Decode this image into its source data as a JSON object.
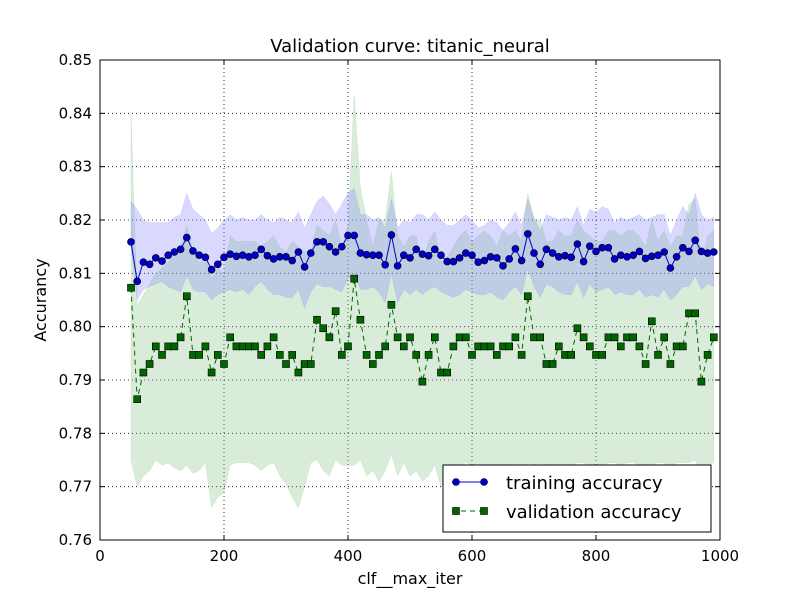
{
  "chart_data": {
    "type": "line",
    "title": "Validation curve: titanic_neural",
    "xlabel": "clf__max_iter",
    "ylabel": "Accurancy",
    "xlim": [
      0,
      1000
    ],
    "ylim": [
      0.76,
      0.85
    ],
    "x_ticks": [
      "0",
      "200",
      "400",
      "600",
      "800",
      "1000"
    ],
    "y_ticks": [
      "0.76",
      "0.77",
      "0.78",
      "0.79",
      "0.80",
      "0.81",
      "0.82",
      "0.83",
      "0.84",
      "0.85"
    ],
    "grid": true,
    "legend_position": "lower-right",
    "x": [
      50,
      60,
      70,
      80,
      90,
      100,
      110,
      120,
      130,
      140,
      150,
      160,
      170,
      180,
      190,
      200,
      210,
      220,
      230,
      240,
      250,
      260,
      270,
      280,
      290,
      300,
      310,
      320,
      330,
      340,
      350,
      360,
      370,
      380,
      390,
      400,
      410,
      420,
      430,
      440,
      450,
      460,
      470,
      480,
      490,
      500,
      510,
      520,
      530,
      540,
      550,
      560,
      570,
      580,
      590,
      600,
      610,
      620,
      630,
      640,
      650,
      660,
      670,
      680,
      690,
      700,
      710,
      720,
      730,
      740,
      750,
      760,
      770,
      780,
      790,
      800,
      810,
      820,
      830,
      840,
      850,
      860,
      870,
      880,
      890,
      900,
      910,
      920,
      930,
      940,
      950,
      960,
      970,
      980,
      990
    ],
    "series": [
      {
        "name": "training accuracy",
        "color": "#0000cc",
        "band_color": "#8080ff",
        "marker": "circle",
        "line": "solid",
        "values": [
          0.8159,
          0.8085,
          0.8121,
          0.8117,
          0.8129,
          0.8123,
          0.8134,
          0.814,
          0.8145,
          0.8167,
          0.8142,
          0.8134,
          0.813,
          0.8107,
          0.8117,
          0.813,
          0.8136,
          0.8132,
          0.8134,
          0.8131,
          0.8134,
          0.8145,
          0.8133,
          0.8127,
          0.8131,
          0.8131,
          0.8124,
          0.814,
          0.8112,
          0.8138,
          0.8159,
          0.8159,
          0.815,
          0.814,
          0.815,
          0.8171,
          0.8171,
          0.8138,
          0.8135,
          0.8134,
          0.8134,
          0.8116,
          0.8172,
          0.8114,
          0.8134,
          0.8129,
          0.8145,
          0.8136,
          0.8133,
          0.8145,
          0.8134,
          0.8122,
          0.8122,
          0.8129,
          0.8138,
          0.8134,
          0.8121,
          0.8124,
          0.8131,
          0.8129,
          0.8114,
          0.8127,
          0.8146,
          0.8124,
          0.8174,
          0.8138,
          0.8117,
          0.8145,
          0.8138,
          0.8131,
          0.8133,
          0.813,
          0.8155,
          0.8122,
          0.8151,
          0.8141,
          0.8148,
          0.8148,
          0.8127,
          0.8134,
          0.8131,
          0.8134,
          0.8141,
          0.8128,
          0.8132,
          0.8134,
          0.814,
          0.811,
          0.8131,
          0.8148,
          0.8141,
          0.8162,
          0.8141,
          0.8138,
          0.814
        ],
        "lower": [
          0.815,
          0.805,
          0.807,
          0.8075,
          0.808,
          0.8085,
          0.8075,
          0.807,
          0.8065,
          0.8095,
          0.807,
          0.8065,
          0.8065,
          0.805,
          0.806,
          0.8065,
          0.807,
          0.8065,
          0.807,
          0.806,
          0.8075,
          0.8085,
          0.807,
          0.806,
          0.806,
          0.8055,
          0.8055,
          0.807,
          0.8035,
          0.8065,
          0.808,
          0.8075,
          0.8075,
          0.807,
          0.8065,
          0.809,
          0.81,
          0.807,
          0.807,
          0.8075,
          0.8065,
          0.8045,
          0.81,
          0.8045,
          0.807,
          0.806,
          0.807,
          0.806,
          0.807,
          0.8075,
          0.8065,
          0.806,
          0.8055,
          0.806,
          0.807,
          0.8065,
          0.806,
          0.806,
          0.8065,
          0.8055,
          0.805,
          0.8065,
          0.8075,
          0.806,
          0.811,
          0.8075,
          0.8055,
          0.808,
          0.8075,
          0.8065,
          0.806,
          0.806,
          0.8085,
          0.8055,
          0.808,
          0.8065,
          0.807,
          0.8075,
          0.806,
          0.8065,
          0.806,
          0.806,
          0.807,
          0.8055,
          0.806,
          0.8055,
          0.807,
          0.805,
          0.806,
          0.8075,
          0.8075,
          0.8095,
          0.807,
          0.808,
          0.8075
        ],
        "upper": [
          0.8235,
          0.822,
          0.82,
          0.8195,
          0.8195,
          0.8195,
          0.8195,
          0.8205,
          0.821,
          0.825,
          0.822,
          0.821,
          0.82,
          0.8175,
          0.8185,
          0.82,
          0.821,
          0.82,
          0.8205,
          0.82,
          0.82,
          0.821,
          0.82,
          0.8195,
          0.8205,
          0.82,
          0.8195,
          0.8215,
          0.8185,
          0.821,
          0.8235,
          0.8245,
          0.823,
          0.821,
          0.823,
          0.825,
          0.826,
          0.821,
          0.821,
          0.82,
          0.8205,
          0.8185,
          0.824,
          0.8185,
          0.82,
          0.8195,
          0.821,
          0.821,
          0.82,
          0.8215,
          0.82,
          0.819,
          0.819,
          0.82,
          0.821,
          0.82,
          0.8185,
          0.819,
          0.82,
          0.8195,
          0.818,
          0.8195,
          0.8215,
          0.819,
          0.824,
          0.8205,
          0.818,
          0.821,
          0.8205,
          0.82,
          0.8205,
          0.82,
          0.8225,
          0.819,
          0.822,
          0.8215,
          0.8225,
          0.822,
          0.8195,
          0.8205,
          0.82,
          0.8205,
          0.821,
          0.82,
          0.8205,
          0.821,
          0.821,
          0.817,
          0.82,
          0.8225,
          0.821,
          0.825,
          0.821,
          0.82,
          0.8205
        ]
      },
      {
        "name": "validation accuracy",
        "color": "#006600",
        "band_color": "#80c080",
        "marker": "square",
        "line": "dashed",
        "values": [
          0.8073,
          0.7864,
          0.7914,
          0.793,
          0.7963,
          0.7947,
          0.7963,
          0.7963,
          0.798,
          0.8057,
          0.7947,
          0.7947,
          0.7963,
          0.7914,
          0.7947,
          0.793,
          0.798,
          0.7963,
          0.7963,
          0.7963,
          0.7963,
          0.7947,
          0.7963,
          0.798,
          0.7947,
          0.793,
          0.7947,
          0.7914,
          0.793,
          0.793,
          0.8013,
          0.7997,
          0.798,
          0.8029,
          0.7947,
          0.7963,
          0.809,
          0.8013,
          0.7947,
          0.793,
          0.7947,
          0.7963,
          0.8041,
          0.798,
          0.7963,
          0.798,
          0.7947,
          0.7897,
          0.7947,
          0.798,
          0.7914,
          0.7914,
          0.7963,
          0.798,
          0.798,
          0.7947,
          0.7963,
          0.7963,
          0.7963,
          0.7947,
          0.7963,
          0.7963,
          0.798,
          0.7947,
          0.8057,
          0.798,
          0.798,
          0.793,
          0.793,
          0.7963,
          0.7947,
          0.7947,
          0.7997,
          0.798,
          0.7963,
          0.7947,
          0.7947,
          0.798,
          0.798,
          0.7963,
          0.798,
          0.798,
          0.7963,
          0.793,
          0.801,
          0.7947,
          0.798,
          0.793,
          0.7963,
          0.7963,
          0.8025,
          0.8025,
          0.7897,
          0.7947,
          0.798
        ],
        "lower": [
          0.775,
          0.77,
          0.772,
          0.773,
          0.775,
          0.774,
          0.7745,
          0.7735,
          0.773,
          0.774,
          0.7725,
          0.773,
          0.7745,
          0.766,
          0.768,
          0.769,
          0.774,
          0.7745,
          0.7745,
          0.7745,
          0.774,
          0.773,
          0.774,
          0.7745,
          0.772,
          0.7705,
          0.768,
          0.766,
          0.77,
          0.7745,
          0.775,
          0.773,
          0.772,
          0.775,
          0.774,
          0.774,
          0.774,
          0.775,
          0.772,
          0.773,
          0.771,
          0.773,
          0.776,
          0.772,
          0.7745,
          0.772,
          0.773,
          0.771,
          0.772,
          0.774,
          0.77,
          0.77,
          0.774,
          0.774,
          0.7745,
          0.774,
          0.7735,
          0.773,
          0.774,
          0.772,
          0.774,
          0.7735,
          0.7745,
          0.773,
          0.7745,
          0.774,
          0.7745,
          0.772,
          0.772,
          0.7745,
          0.7735,
          0.7735,
          0.7745,
          0.7745,
          0.774,
          0.772,
          0.774,
          0.7745,
          0.7745,
          0.774,
          0.7745,
          0.7745,
          0.774,
          0.773,
          0.774,
          0.7745,
          0.7745,
          0.772,
          0.7745,
          0.7745,
          0.7745,
          0.775,
          0.772,
          0.774,
          0.7745
        ],
        "upper": [
          0.84,
          0.804,
          0.806,
          0.808,
          0.81,
          0.811,
          0.812,
          0.814,
          0.815,
          0.819,
          0.814,
          0.812,
          0.813,
          0.809,
          0.811,
          0.81,
          0.817,
          0.816,
          0.816,
          0.816,
          0.816,
          0.815,
          0.816,
          0.817,
          0.815,
          0.814,
          0.816,
          0.815,
          0.814,
          0.814,
          0.819,
          0.818,
          0.817,
          0.82,
          0.815,
          0.819,
          0.8435,
          0.826,
          0.82,
          0.815,
          0.82,
          0.82,
          0.829,
          0.817,
          0.815,
          0.817,
          0.817,
          0.812,
          0.816,
          0.818,
          0.812,
          0.813,
          0.815,
          0.817,
          0.818,
          0.816,
          0.817,
          0.818,
          0.817,
          0.815,
          0.818,
          0.817,
          0.818,
          0.816,
          0.825,
          0.82,
          0.82,
          0.816,
          0.816,
          0.818,
          0.817,
          0.817,
          0.82,
          0.818,
          0.817,
          0.816,
          0.816,
          0.818,
          0.818,
          0.817,
          0.818,
          0.818,
          0.817,
          0.815,
          0.82,
          0.816,
          0.818,
          0.815,
          0.817,
          0.817,
          0.823,
          0.824,
          0.812,
          0.817,
          0.818
        ]
      }
    ]
  }
}
